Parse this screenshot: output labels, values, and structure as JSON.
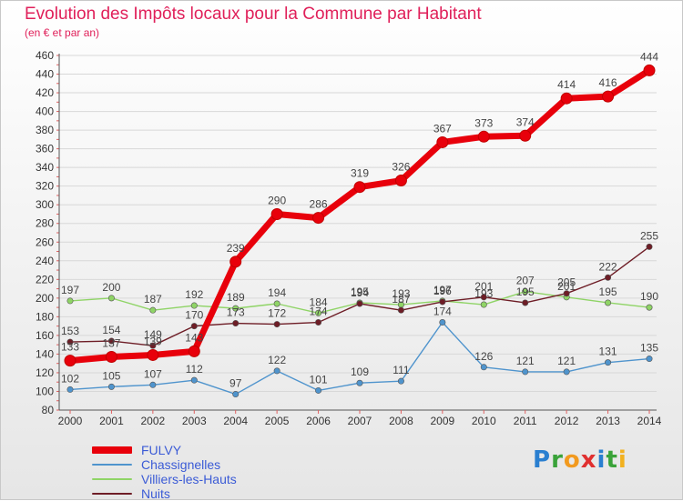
{
  "header": {
    "title": "Evolution des Impôts locaux pour la Commune par Habitant",
    "subtitle": "(en € et par an)"
  },
  "logo": {
    "letters": [
      {
        "char": "P",
        "color": "#2a7fd0"
      },
      {
        "char": "r",
        "color": "#3aa33a"
      },
      {
        "char": "o",
        "color": "#f29a1f"
      },
      {
        "char": "x",
        "color": "#e03030"
      },
      {
        "char": "i",
        "color": "#2a7fd0"
      },
      {
        "char": "t",
        "color": "#3aa33a"
      },
      {
        "char": "i",
        "color": "#f2b11f"
      }
    ]
  },
  "chart_data": {
    "type": "line",
    "title": "Evolution des Impôts locaux pour la Commune par Habitant",
    "subtitle": "(en € et par an)",
    "x": [
      2000,
      2001,
      2002,
      2003,
      2004,
      2005,
      2006,
      2007,
      2008,
      2009,
      2010,
      2011,
      2012,
      2013,
      2014
    ],
    "ylim": [
      80,
      460
    ],
    "yticks": [
      80,
      100,
      120,
      140,
      160,
      180,
      200,
      220,
      240,
      260,
      280,
      300,
      320,
      340,
      360,
      380,
      400,
      420,
      440,
      460
    ],
    "grid": "horizontal",
    "legend_position": "bottom-left",
    "series": [
      {
        "name": "FULVY",
        "color": "#e8000b",
        "bold": true,
        "values": [
          133,
          137,
          139,
          143,
          239,
          290,
          286,
          319,
          326,
          367,
          373,
          374,
          414,
          416,
          444
        ]
      },
      {
        "name": "Chassignelles",
        "color": "#4f94cd",
        "values": [
          102,
          105,
          107,
          112,
          97,
          122,
          101,
          109,
          111,
          174,
          126,
          121,
          121,
          131,
          135
        ]
      },
      {
        "name": "Villiers-les-Hauts",
        "color": "#8fd466",
        "values": [
          197,
          200,
          187,
          192,
          189,
          194,
          184,
          195,
          193,
          197,
          193,
          207,
          201,
          195,
          190
        ]
      },
      {
        "name": "Nuits",
        "color": "#6e1d26",
        "values": [
          153,
          154,
          149,
          170,
          173,
          172,
          174,
          194,
          187,
          196,
          201,
          195,
          205,
          222,
          255
        ]
      }
    ]
  }
}
